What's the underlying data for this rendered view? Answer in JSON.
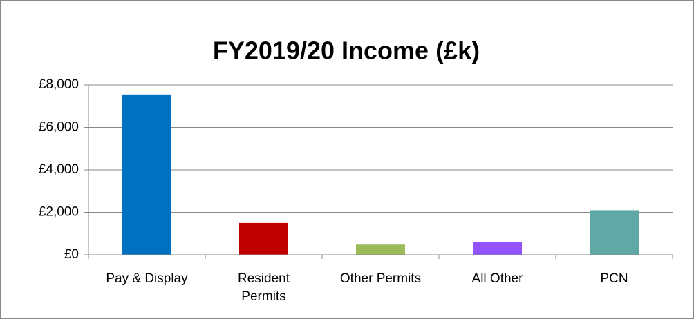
{
  "chart_data": {
    "type": "bar",
    "title": "FY2019/20 Income (£k)",
    "categories": [
      "Pay & Display",
      "Resident Permits",
      "Other Permits",
      "All Other",
      "PCN"
    ],
    "values": [
      7550,
      1500,
      480,
      600,
      2100
    ],
    "colors": [
      "#0070c0",
      "#c00000",
      "#9bbb59",
      "#9354ff",
      "#5fa8a5"
    ],
    "ylim": [
      0,
      8000
    ],
    "yticks": [
      0,
      {
        "value": 2000,
        "label": "£2,000"
      },
      {
        "value": 4000,
        "label": "£4,000"
      },
      {
        "value": 6000,
        "label": "£6,000"
      },
      {
        "value": 8000,
        "label": "£8,000"
      }
    ],
    "yticklabel_zero": "£0",
    "grid": true
  }
}
